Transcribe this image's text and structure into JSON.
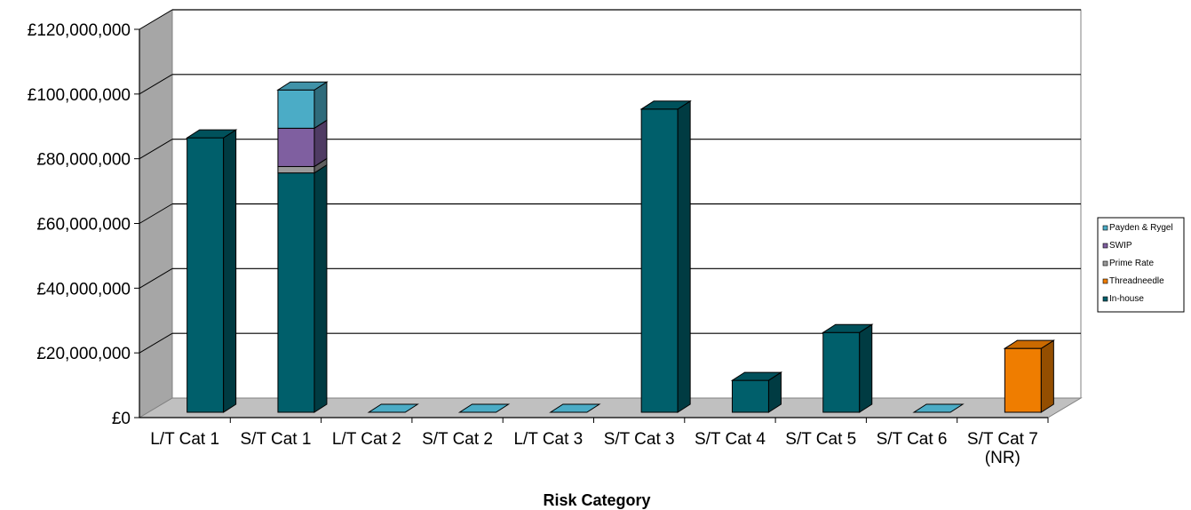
{
  "chart_data": {
    "type": "bar",
    "stacked": true,
    "three_d": true,
    "title": "",
    "xlabel": "Risk Category",
    "ylabel": "",
    "ylim": [
      0,
      120000000
    ],
    "y_ticks": [
      0,
      20000000,
      40000000,
      60000000,
      80000000,
      100000000,
      120000000
    ],
    "y_tick_labels": [
      "£0",
      "£20,000,000",
      "£40,000,000",
      "£60,000,000",
      "£80,000,000",
      "£100,000,000",
      "£120,000,000"
    ],
    "grid": true,
    "legend_position": "right",
    "categories": [
      [
        "L/T Cat 1"
      ],
      [
        "S/T Cat 1"
      ],
      [
        "L/T Cat 2"
      ],
      [
        "S/T Cat 2"
      ],
      [
        "L/T Cat 3"
      ],
      [
        "S/T Cat 3"
      ],
      [
        "S/T Cat 4"
      ],
      [
        "S/T Cat 5"
      ],
      [
        "S/T Cat 6"
      ],
      [
        "S/T Cat 7",
        "(NR)"
      ]
    ],
    "series": [
      {
        "name": "In-house",
        "color": "#005f6b",
        "values": [
          86000000,
          75000000,
          0,
          0,
          0,
          95000000,
          10000000,
          25000000,
          0,
          0
        ]
      },
      {
        "name": "Threadneedle",
        "color": "#ef7d00",
        "values": [
          0,
          0,
          0,
          0,
          0,
          0,
          0,
          0,
          0,
          20000000
        ]
      },
      {
        "name": "Prime Rate",
        "color": "#9a9a9a",
        "values": [
          0,
          2000000,
          0,
          0,
          0,
          0,
          0,
          0,
          0,
          0
        ]
      },
      {
        "name": "SWIP",
        "color": "#7f5fa0",
        "values": [
          0,
          12000000,
          0,
          0,
          0,
          0,
          0,
          0,
          0,
          0
        ]
      },
      {
        "name": "Payden & Rygel",
        "color": "#4bacc6",
        "values": [
          0,
          12000000,
          0,
          0,
          0,
          0,
          0,
          0,
          0,
          0
        ]
      }
    ],
    "legend_order": [
      "Payden & Rygel",
      "SWIP",
      "Prime Rate",
      "Threadneedle",
      "In-house"
    ],
    "colors": {
      "wall": "#ffffff",
      "side_wall": "#a6a6a6",
      "floor": "#c0c0c0",
      "gridline": "#000000"
    }
  }
}
